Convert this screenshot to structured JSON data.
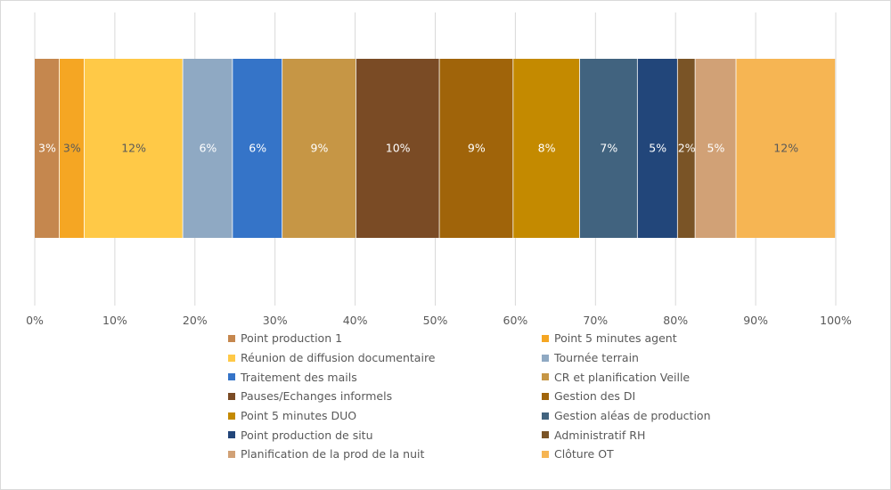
{
  "chart_data": {
    "type": "bar",
    "orientation": "horizontal",
    "stacked": "percent",
    "categories": [
      ""
    ],
    "xlim": [
      0,
      100
    ],
    "x_ticks": [
      "0%",
      "10%",
      "20%",
      "30%",
      "40%",
      "50%",
      "60%",
      "70%",
      "80%",
      "90%",
      "100%"
    ],
    "grid": true,
    "legend_position": "bottom",
    "series": [
      {
        "name": "Point production 1",
        "value": 3.1,
        "label": "3%",
        "color": "#C5874E",
        "label_color": "#ffffff"
      },
      {
        "name": "Point 5 minutes agent",
        "value": 3.1,
        "label": "3%",
        "color": "#F5A623",
        "label_color": "#595959"
      },
      {
        "name": "Réunion de diffusion documentaire",
        "value": 12.3,
        "label": "12%",
        "color": "#FFC947",
        "label_color": "#595959"
      },
      {
        "name": "Tournée terrain",
        "value": 6.2,
        "label": "6%",
        "color": "#8FA9C3",
        "label_color": "#ffffff"
      },
      {
        "name": "Traitement des mails",
        "value": 6.2,
        "label": "6%",
        "color": "#3574C8",
        "label_color": "#ffffff"
      },
      {
        "name": "CR et planification Veille",
        "value": 9.2,
        "label": "9%",
        "color": "#C69645",
        "label_color": "#ffffff"
      },
      {
        "name": "Pauses/Echanges informels",
        "value": 10.4,
        "label": "10%",
        "color": "#7A4B25",
        "label_color": "#ffffff"
      },
      {
        "name": "Gestion des DI",
        "value": 9.2,
        "label": "9%",
        "color": "#A0640A",
        "label_color": "#ffffff"
      },
      {
        "name": "Point 5 minutes DUO",
        "value": 8.3,
        "label": "8%",
        "color": "#C48A00",
        "label_color": "#ffffff"
      },
      {
        "name": "Gestion aléas de production",
        "value": 7.2,
        "label": "7%",
        "color": "#41637F",
        "label_color": "#ffffff"
      },
      {
        "name": "Point production de situ",
        "value": 5.0,
        "label": "5%",
        "color": "#22467A",
        "label_color": "#ffffff"
      },
      {
        "name": "Administratif RH",
        "value": 2.2,
        "label": "2%",
        "color": "#7A5426",
        "label_color": "#ffffff"
      },
      {
        "name": "Planification de la prod de la nuit",
        "value": 5.1,
        "label": "5%",
        "color": "#D1A176",
        "label_color": "#ffffff"
      },
      {
        "name": "Clôture OT",
        "value": 12.4,
        "label": "12%",
        "color": "#F6B553",
        "label_color": "#595959"
      }
    ]
  }
}
